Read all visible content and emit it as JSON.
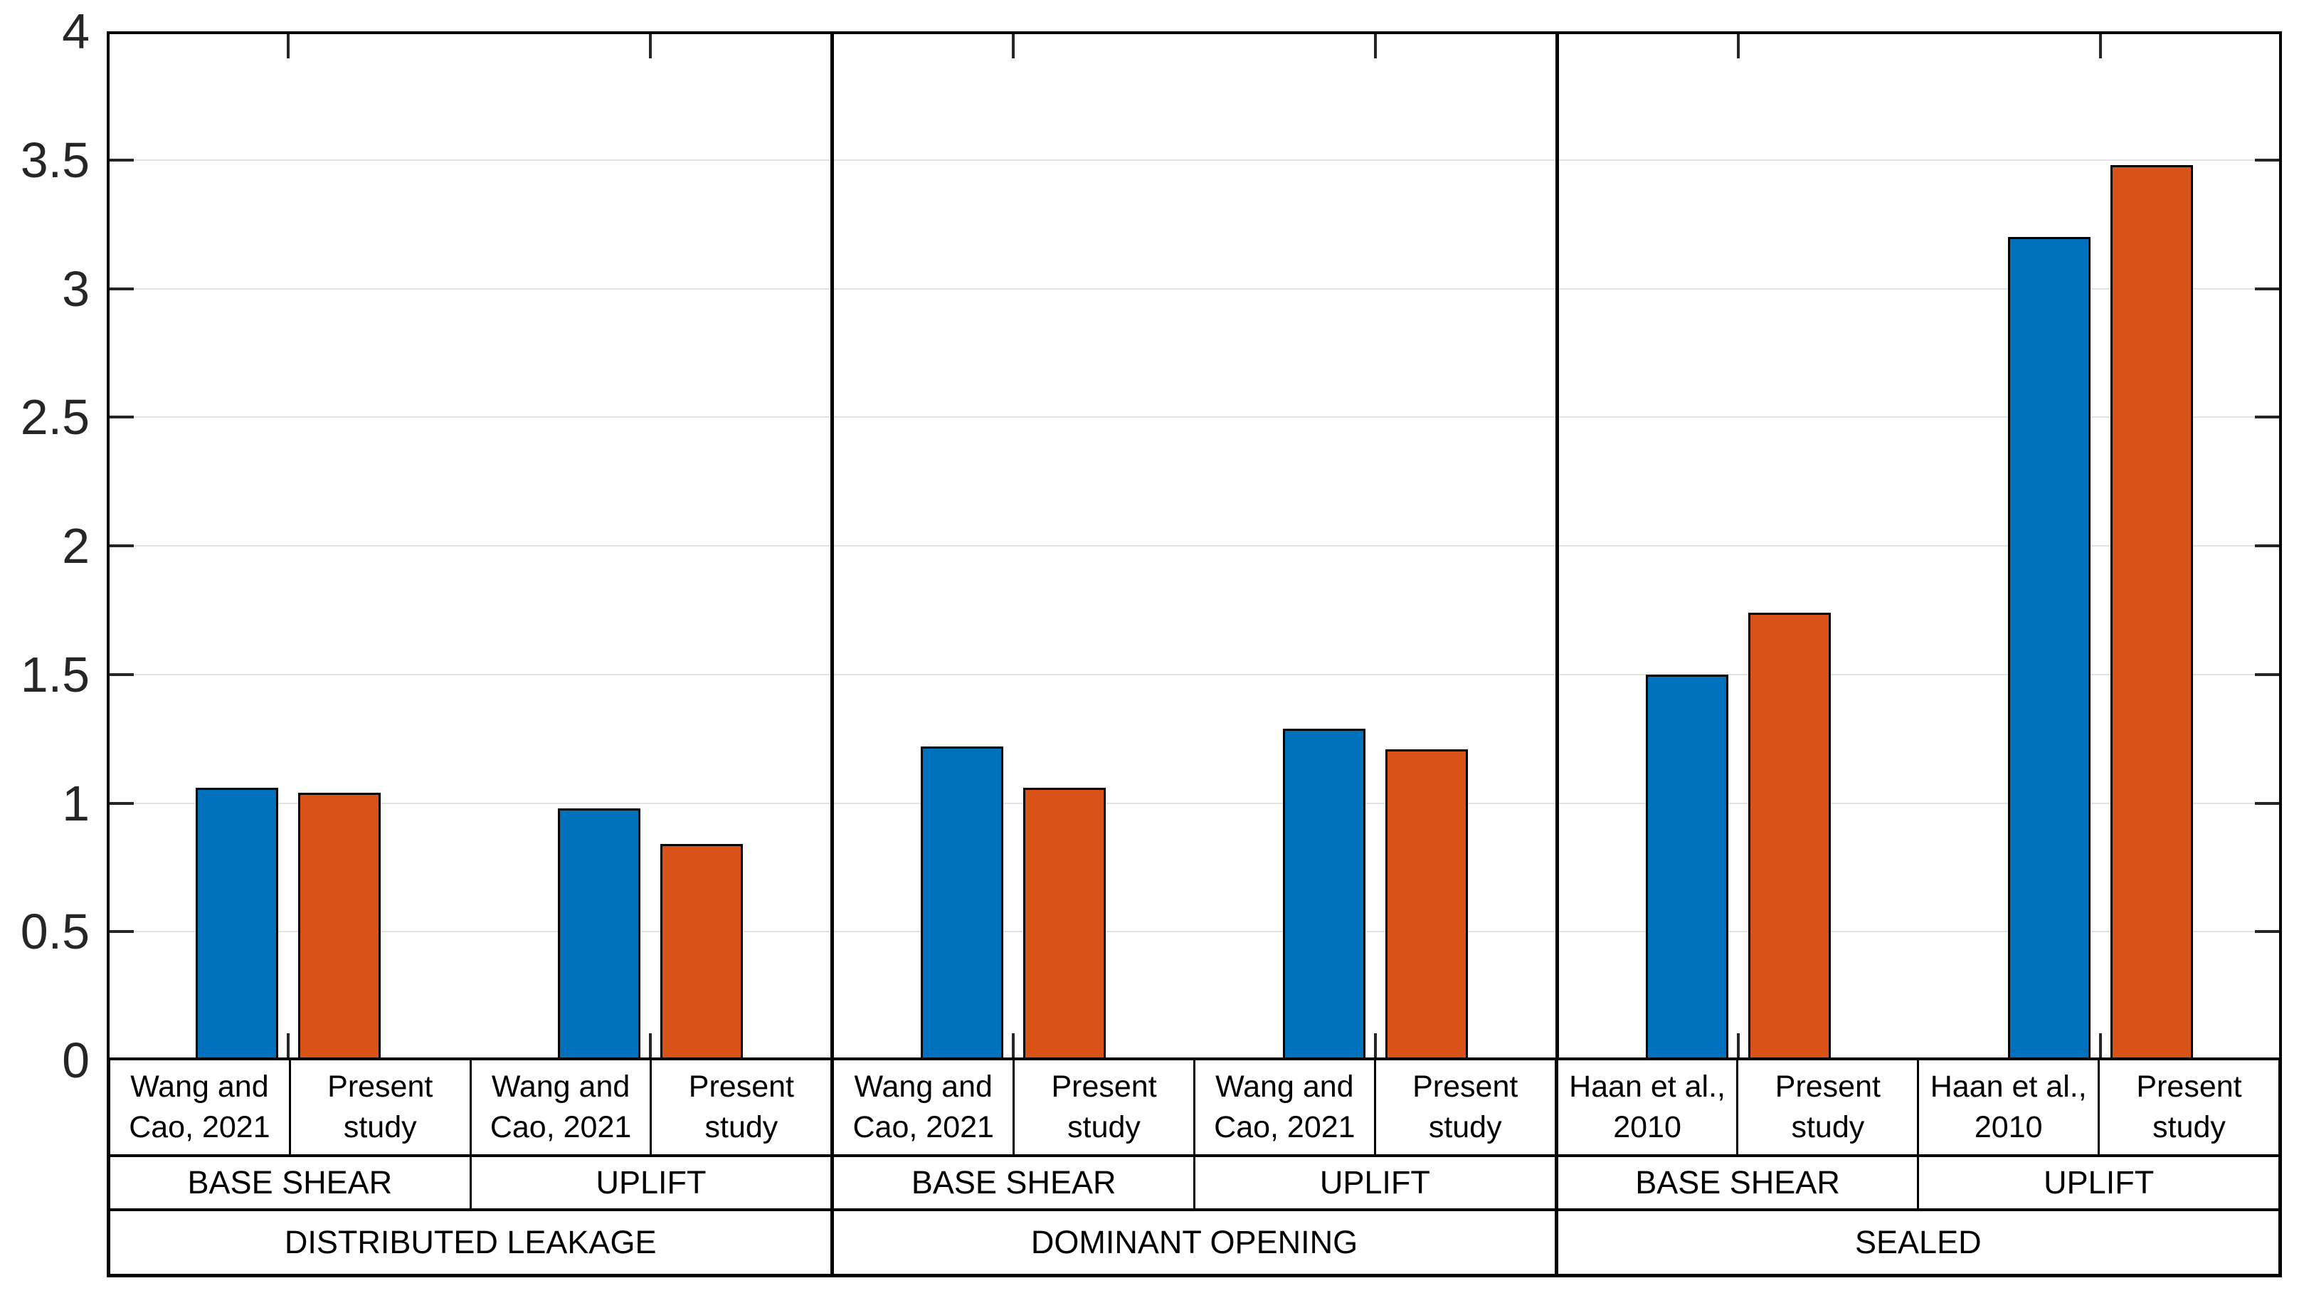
{
  "page": {
    "background": "#FFFFFF"
  },
  "chart_data": {
    "type": "bar",
    "title": "",
    "xlabel": "",
    "ylabel": "",
    "ylim": [
      0,
      4
    ],
    "ytick_labels": [
      "0",
      "0.5",
      "1",
      "1.5",
      "2",
      "2.5",
      "3",
      "3.5",
      "4"
    ],
    "grid": "horizontal",
    "legend_position": "none",
    "axis_color": "#000000",
    "grid_color": "#E2E2E2",
    "tick_color": "#262626",
    "bar_edge_color": "#000000",
    "series_colors": [
      "#0072BD",
      "#D95319"
    ],
    "groups": [
      {
        "label": "DISTRIBUTED LEAKAGE",
        "subgroups": [
          {
            "label": "BASE SHEAR",
            "bars": [
              {
                "label": "Wang and Cao, 2021",
                "lines": [
                  "Wang and",
                  "Cao, 2021"
                ],
                "value": 1.06,
                "color": "#0072BD"
              },
              {
                "label": "Present study",
                "lines": [
                  "Present",
                  "study"
                ],
                "value": 1.04,
                "color": "#D95319"
              }
            ]
          },
          {
            "label": "UPLIFT",
            "bars": [
              {
                "label": "Wang and Cao, 2021",
                "lines": [
                  "Wang and",
                  "Cao, 2021"
                ],
                "value": 0.98,
                "color": "#0072BD"
              },
              {
                "label": "Present study",
                "lines": [
                  "Present",
                  "study"
                ],
                "value": 0.84,
                "color": "#D95319"
              }
            ]
          }
        ]
      },
      {
        "label": "DOMINANT OPENING",
        "subgroups": [
          {
            "label": "BASE SHEAR",
            "bars": [
              {
                "label": "Wang and Cao, 2021",
                "lines": [
                  "Wang and",
                  "Cao, 2021"
                ],
                "value": 1.22,
                "color": "#0072BD"
              },
              {
                "label": "Present study",
                "lines": [
                  "Present",
                  "study"
                ],
                "value": 1.06,
                "color": "#D95319"
              }
            ]
          },
          {
            "label": "UPLIFT",
            "bars": [
              {
                "label": "Wang and Cao, 2021",
                "lines": [
                  "Wang and",
                  "Cao, 2021"
                ],
                "value": 1.29,
                "color": "#0072BD"
              },
              {
                "label": "Present study",
                "lines": [
                  "Present",
                  "study"
                ],
                "value": 1.21,
                "color": "#D95319"
              }
            ]
          }
        ]
      },
      {
        "label": "SEALED",
        "subgroups": [
          {
            "label": "BASE SHEAR",
            "bars": [
              {
                "label": "Haan et al., 2010",
                "lines": [
                  "Haan et al.,",
                  "2010"
                ],
                "value": 1.5,
                "color": "#0072BD"
              },
              {
                "label": "Present study",
                "lines": [
                  "Present",
                  "study"
                ],
                "value": 1.74,
                "color": "#D95319"
              }
            ]
          },
          {
            "label": "UPLIFT",
            "bars": [
              {
                "label": "Haan et al., 2010",
                "lines": [
                  "Haan et al.,",
                  "2010"
                ],
                "value": 3.2,
                "color": "#0072BD"
              },
              {
                "label": "Present study",
                "lines": [
                  "Present",
                  "study"
                ],
                "value": 3.48,
                "color": "#D95319"
              }
            ]
          }
        ]
      }
    ]
  }
}
